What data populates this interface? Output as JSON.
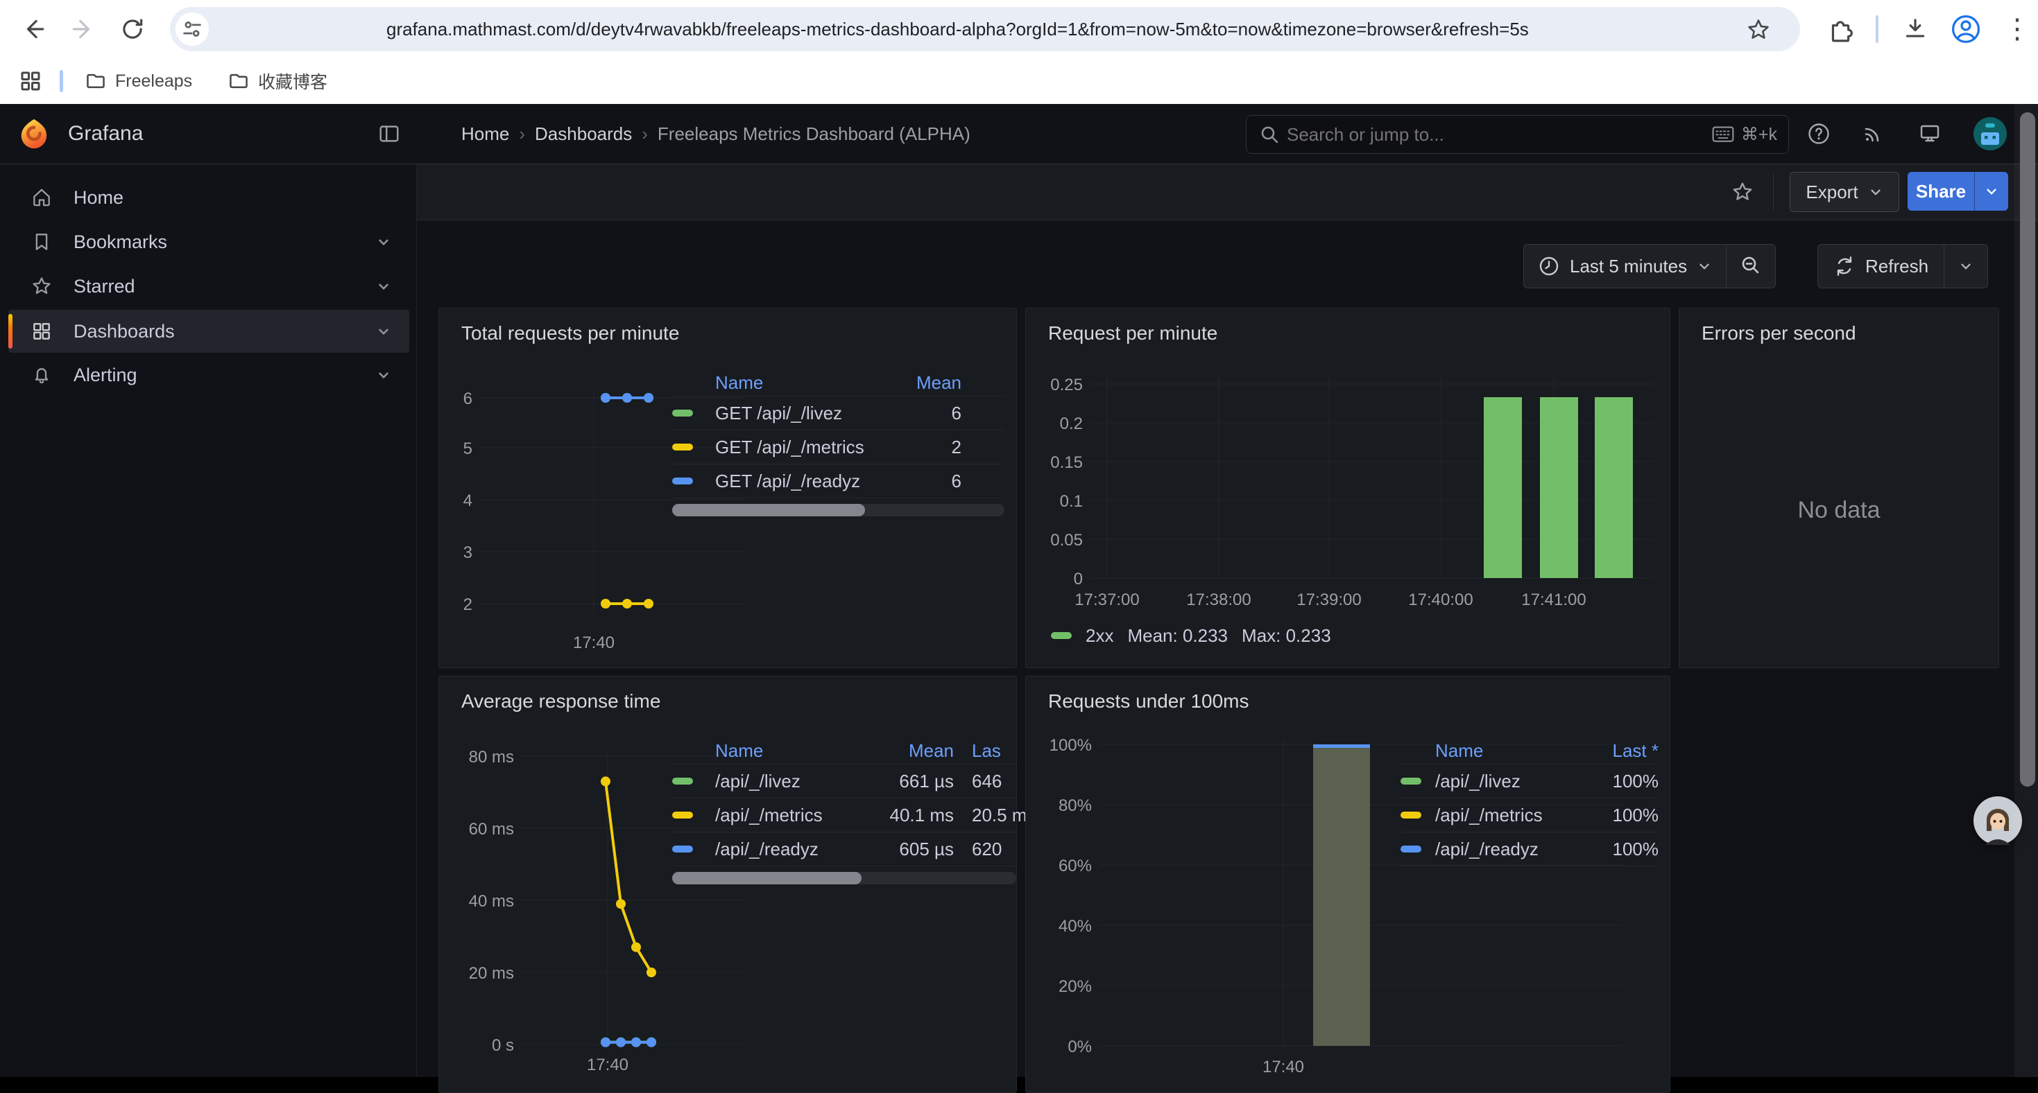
{
  "browser": {
    "url": "grafana.mathmast.com/d/deytv4rwavabkb/freeleaps-metrics-dashboard-alpha?orgId=1&from=now-5m&to=now&timezone=browser&refresh=5s",
    "bookmarks": [
      {
        "label": "Freeleaps"
      },
      {
        "label": "收藏博客"
      }
    ]
  },
  "icons": {
    "breadcrumb_separator": "›",
    "kebab_menu_glyph": "⋮"
  },
  "grafana": {
    "brand": "Grafana",
    "sidebar": [
      {
        "label": "Home"
      },
      {
        "label": "Bookmarks"
      },
      {
        "label": "Starred"
      },
      {
        "label": "Dashboards"
      },
      {
        "label": "Alerting"
      }
    ],
    "breadcrumbs": [
      "Home",
      "Dashboards",
      "Freeleaps Metrics Dashboard (ALPHA)"
    ],
    "search": {
      "placeholder": "Search or jump to...",
      "shortcut": "⌘+k"
    },
    "toolbar": {
      "export": "Export",
      "share": "Share"
    },
    "timebar": {
      "range": "Last 5 minutes",
      "refresh": "Refresh"
    }
  },
  "colors": {
    "green": "#73bf69",
    "yellow": "#f2cc0c",
    "blue": "#5794f2",
    "link": "#6e9fff",
    "muted_bar": "#5a614f",
    "grid": "#22252a",
    "tick": "#9d9fa5"
  },
  "chart_data": [
    {
      "panel": "total-requests-per-minute",
      "type": "line",
      "title": "Total requests per minute",
      "ylim": [
        1.5,
        6.5
      ],
      "yticks": [
        6,
        5,
        4,
        3,
        2
      ],
      "xticks": [
        "17:40"
      ],
      "legend_columns": [
        "Name",
        "Mean"
      ],
      "series": [
        {
          "name": "GET /api/_/livez",
          "color": "green",
          "mean": 6,
          "points": [
            6,
            6,
            6
          ]
        },
        {
          "name": "GET /api/_/metrics",
          "color": "yellow",
          "mean": 2,
          "points": [
            2,
            2,
            2
          ]
        },
        {
          "name": "GET /api/_/readyz",
          "color": "blue",
          "mean": 6,
          "points": [
            6,
            6,
            6
          ]
        }
      ]
    },
    {
      "panel": "request-per-minute",
      "type": "bar",
      "title": "Request per minute",
      "ylim": [
        0,
        0.25
      ],
      "yticks": [
        "0.25",
        "0.2",
        "0.15",
        "0.1",
        "0.05",
        "0"
      ],
      "xticks": [
        "17:37:00",
        "17:38:00",
        "17:39:00",
        "17:40:00",
        "17:41:00"
      ],
      "series": [
        {
          "name": "2xx",
          "color": "green",
          "values": [
            0.233,
            0.233,
            0.233
          ],
          "mean_label": "Mean: 0.233",
          "max_label": "Max: 0.233"
        }
      ]
    },
    {
      "panel": "errors-per-second",
      "type": "none",
      "title": "Errors per second",
      "no_data_text": "No data"
    },
    {
      "panel": "average-response-time",
      "type": "line",
      "title": "Average response time",
      "ylim_ms": [
        0,
        83
      ],
      "yticks": [
        "80 ms",
        "60 ms",
        "40 ms",
        "20 ms",
        "0 s"
      ],
      "xticks": [
        "17:40"
      ],
      "legend_columns": [
        "Name",
        "Mean",
        "Las"
      ],
      "series": [
        {
          "name": "/api/_/livez",
          "color": "green",
          "mean": "661 µs",
          "last": "646",
          "points_ms": [
            0.66,
            0.66,
            0.66,
            0.66
          ]
        },
        {
          "name": "/api/_/metrics",
          "color": "yellow",
          "mean": "40.1 ms",
          "last": "20.5 m",
          "points_ms": [
            73,
            39,
            27,
            20
          ]
        },
        {
          "name": "/api/_/readyz",
          "color": "blue",
          "mean": "605 µs",
          "last": "620",
          "points_ms": [
            0.6,
            0.6,
            0.6,
            0.6
          ]
        }
      ]
    },
    {
      "panel": "requests-under-100ms",
      "type": "bar",
      "title": "Requests under 100ms",
      "ylim": [
        0,
        100
      ],
      "yticks": [
        "100%",
        "80%",
        "60%",
        "40%",
        "20%",
        "0%"
      ],
      "xticks": [
        "17:40"
      ],
      "legend_columns": [
        "Name",
        "Last *"
      ],
      "bar": {
        "value": 100
      },
      "series": [
        {
          "name": "/api/_/livez",
          "color": "green",
          "last": "100%"
        },
        {
          "name": "/api/_/metrics",
          "color": "yellow",
          "last": "100%"
        },
        {
          "name": "/api/_/readyz",
          "color": "blue",
          "last": "100%"
        }
      ]
    }
  ]
}
